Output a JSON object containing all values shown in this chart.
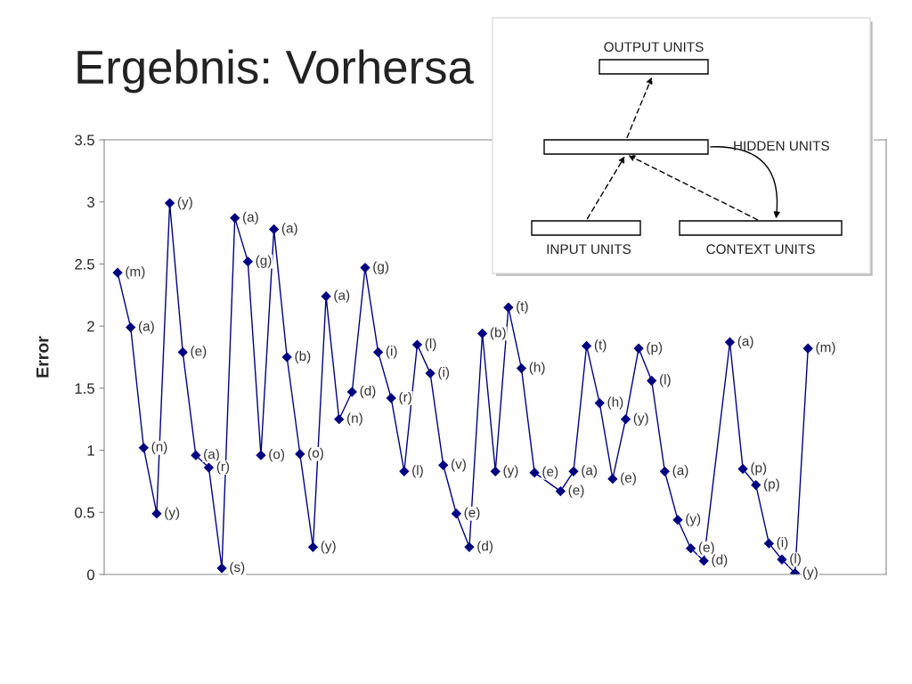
{
  "chart_data": {
    "type": "line",
    "title": "Ergebnis: Vorhersa",
    "ylabel": "Error",
    "categories": [
      null,
      null,
      null,
      null,
      null,
      null,
      null,
      null,
      null,
      null,
      null,
      null,
      null,
      null,
      null,
      null,
      null,
      null,
      null,
      null,
      null,
      null,
      null,
      null,
      null,
      null,
      null,
      null,
      null,
      null,
      null,
      null,
      null,
      null,
      null,
      null,
      null,
      null,
      null,
      null,
      null,
      null,
      null,
      null,
      null,
      null,
      null,
      null,
      null,
      null,
      null,
      null,
      null,
      null
    ],
    "series": [
      {
        "color": "#000080",
        "values": [
          2.43,
          1.99,
          1.02,
          0.49,
          2.99,
          1.79,
          0.96,
          0.86,
          0.05,
          2.87,
          2.52,
          0.96,
          2.78,
          1.75,
          0.97,
          0.22,
          2.24,
          1.25,
          1.47,
          2.47,
          1.79,
          1.42,
          0.83,
          1.85,
          1.62,
          0.88,
          0.49,
          0.22,
          1.94,
          0.83,
          2.15,
          1.66,
          0.82,
          null,
          0.67,
          0.83,
          1.84,
          1.38,
          0.77,
          1.25,
          1.82,
          1.56,
          0.83,
          0.44,
          0.21,
          0.11,
          null,
          1.87,
          0.85,
          0.72,
          0.25,
          0.12,
          0.01,
          1.82
        ],
        "value_labels": [
          "(m)",
          "(a)",
          "(n)",
          "(y)",
          "(y)",
          "(e)",
          "(a)",
          "(r)",
          "(s)",
          "(a)",
          "(g)",
          "(o)",
          "(a)",
          "(b)",
          "(o)",
          "(y)",
          "(a)",
          "(n)",
          "(d)",
          "(g)",
          "(i)",
          "(r)",
          "(l)",
          "(l)",
          "(i)",
          "(v)",
          "(e)",
          "(d)",
          "(b)",
          "(y)",
          "(t)",
          "(h)",
          "(e)",
          null,
          "(e)",
          "(a)",
          "(t)",
          "(h)",
          "(e)",
          "(y)",
          "(p)",
          "(l)",
          "(a)",
          "(y)",
          "(e)",
          "(d)",
          null,
          "(a)",
          "(p)",
          "(p)",
          "(i)",
          "(l)",
          "(y)",
          "(m)"
        ]
      }
    ],
    "ylim": [
      0,
      3.5
    ],
    "yticks": [
      0,
      0.5,
      1,
      1.5,
      2,
      2.5,
      3,
      3.5
    ],
    "grid": false,
    "marker": "diamond",
    "line_style": "solid",
    "annotations": [
      "OUTPUT UNITS",
      "HIDDEN UNITS",
      "INPUT UNITS",
      "CONTEXT UNITS"
    ]
  }
}
